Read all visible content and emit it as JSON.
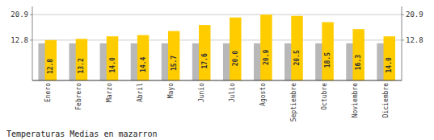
{
  "chart_data": {
    "type": "bar",
    "title": "Temperaturas Medias en mazarron",
    "categories": [
      "Enero",
      "Febrero",
      "Marzo",
      "Abril",
      "Mayo",
      "Junio",
      "Julio",
      "Agosto",
      "Septiembre",
      "Octubre",
      "Noviembre",
      "Diciembre"
    ],
    "series": [
      {
        "color": "#B8B8B8",
        "values": [
          11.8,
          11.8,
          11.8,
          11.8,
          11.8,
          11.8,
          11.8,
          11.8,
          11.8,
          11.8,
          11.8,
          11.8
        ]
      },
      {
        "color": "#FFCC00",
        "values": [
          12.8,
          13.2,
          14.0,
          14.4,
          15.7,
          17.6,
          20.0,
          20.9,
          20.5,
          18.5,
          16.3,
          14.0
        ],
        "value_labels": [
          "12.8",
          "13.2",
          "14.0",
          "14.4",
          "15.7",
          "17.6",
          "20.0",
          "20.9",
          "20.5",
          "18.5",
          "16.3",
          "14.0"
        ],
        "data_labels": true
      }
    ],
    "ylim": [
      0,
      23.5
    ],
    "yticks": [
      12.8,
      20.9
    ],
    "grid": true
  }
}
